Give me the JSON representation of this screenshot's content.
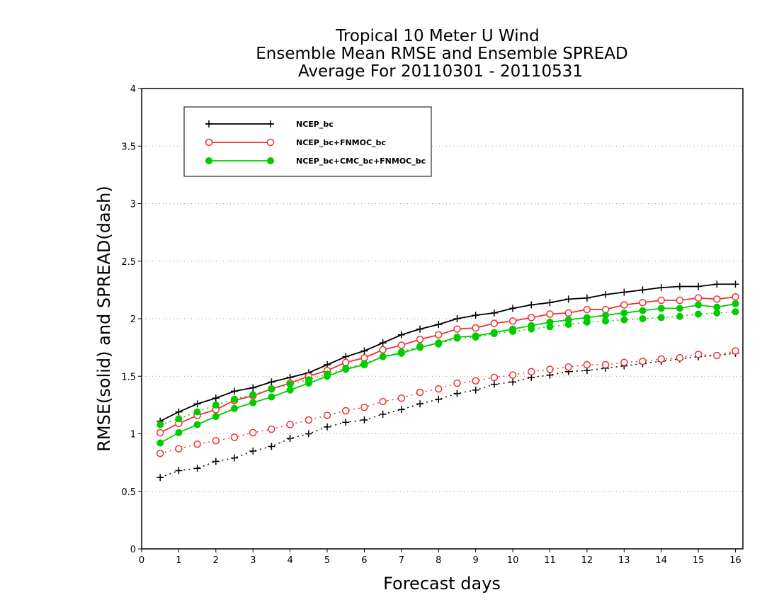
{
  "chart_data": {
    "type": "line",
    "title": [
      "Tropical 10 Meter U Wind",
      "Ensemble Mean RMSE and Ensemble SPREAD",
      "Average For 20110301 - 20110531"
    ],
    "xlabel": "Forecast days",
    "ylabel": "RMSE(solid) and SPREAD(dash)",
    "xlim": [
      0,
      16.2
    ],
    "ylim": [
      0,
      4
    ],
    "xticks": [
      0,
      1,
      2,
      3,
      4,
      5,
      6,
      7,
      8,
      9,
      10,
      11,
      12,
      13,
      14,
      15,
      16
    ],
    "yticks": [
      0,
      0.5,
      1,
      1.5,
      2,
      2.5,
      3,
      3.5,
      4
    ],
    "ytick_labels": [
      "0",
      "0.5",
      "1",
      "1.5",
      "2",
      "2.5",
      "3",
      "3.5",
      "4"
    ],
    "grid": "horizontal dotted",
    "legend_position": "top-left",
    "x": [
      0.5,
      1,
      1.5,
      2,
      2.5,
      3,
      3.5,
      4,
      4.5,
      5,
      5.5,
      6,
      6.5,
      7,
      7.5,
      8,
      8.5,
      9,
      9.5,
      10,
      10.5,
      11,
      11.5,
      12,
      12.5,
      13,
      13.5,
      14,
      14.5,
      15,
      15.5,
      16
    ],
    "series": [
      {
        "name": "NCEP_bc",
        "color": "#000000",
        "marker": "plus",
        "rmse": [
          1.11,
          1.19,
          1.26,
          1.31,
          1.37,
          1.4,
          1.45,
          1.49,
          1.53,
          1.6,
          1.67,
          1.72,
          1.79,
          1.86,
          1.91,
          1.95,
          2.0,
          2.03,
          2.05,
          2.09,
          2.12,
          2.14,
          2.17,
          2.18,
          2.21,
          2.23,
          2.25,
          2.27,
          2.28,
          2.28,
          2.3,
          2.3
        ],
        "spread": [
          0.62,
          0.68,
          0.7,
          0.76,
          0.79,
          0.85,
          0.89,
          0.96,
          1.0,
          1.06,
          1.1,
          1.12,
          1.17,
          1.21,
          1.26,
          1.3,
          1.35,
          1.38,
          1.43,
          1.45,
          1.49,
          1.51,
          1.54,
          1.55,
          1.57,
          1.59,
          1.61,
          1.63,
          1.65,
          1.67,
          1.68,
          1.7
        ]
      },
      {
        "name": "NCEP_bc+FNMOC_bc",
        "color": "#ee3333",
        "marker": "open-circle",
        "rmse": [
          1.01,
          1.09,
          1.16,
          1.21,
          1.29,
          1.33,
          1.39,
          1.44,
          1.5,
          1.55,
          1.62,
          1.66,
          1.73,
          1.77,
          1.82,
          1.86,
          1.91,
          1.92,
          1.96,
          1.98,
          2.01,
          2.04,
          2.05,
          2.08,
          2.08,
          2.12,
          2.14,
          2.16,
          2.16,
          2.18,
          2.17,
          2.19
        ],
        "spread": [
          0.83,
          0.87,
          0.91,
          0.94,
          0.97,
          1.01,
          1.04,
          1.08,
          1.12,
          1.16,
          1.2,
          1.23,
          1.28,
          1.31,
          1.36,
          1.39,
          1.44,
          1.46,
          1.49,
          1.51,
          1.54,
          1.56,
          1.58,
          1.6,
          1.6,
          1.62,
          1.63,
          1.65,
          1.66,
          1.69,
          1.68,
          1.72
        ]
      },
      {
        "name": "NCEP_bc+CMC_bc+FNMOC_bc",
        "color": "#00cc00",
        "marker": "filled-circle",
        "rmse": [
          0.92,
          1.01,
          1.08,
          1.15,
          1.22,
          1.27,
          1.32,
          1.38,
          1.44,
          1.5,
          1.56,
          1.6,
          1.67,
          1.7,
          1.75,
          1.79,
          1.84,
          1.85,
          1.88,
          1.91,
          1.94,
          1.97,
          1.99,
          2.01,
          2.03,
          2.05,
          2.07,
          2.09,
          2.09,
          2.12,
          2.1,
          2.13
        ],
        "spread": [
          1.08,
          1.13,
          1.19,
          1.25,
          1.3,
          1.34,
          1.39,
          1.43,
          1.47,
          1.52,
          1.57,
          1.61,
          1.67,
          1.71,
          1.76,
          1.78,
          1.83,
          1.84,
          1.87,
          1.89,
          1.91,
          1.93,
          1.95,
          1.97,
          1.98,
          1.99,
          2.0,
          2.01,
          2.02,
          2.04,
          2.05,
          2.06
        ]
      }
    ]
  }
}
